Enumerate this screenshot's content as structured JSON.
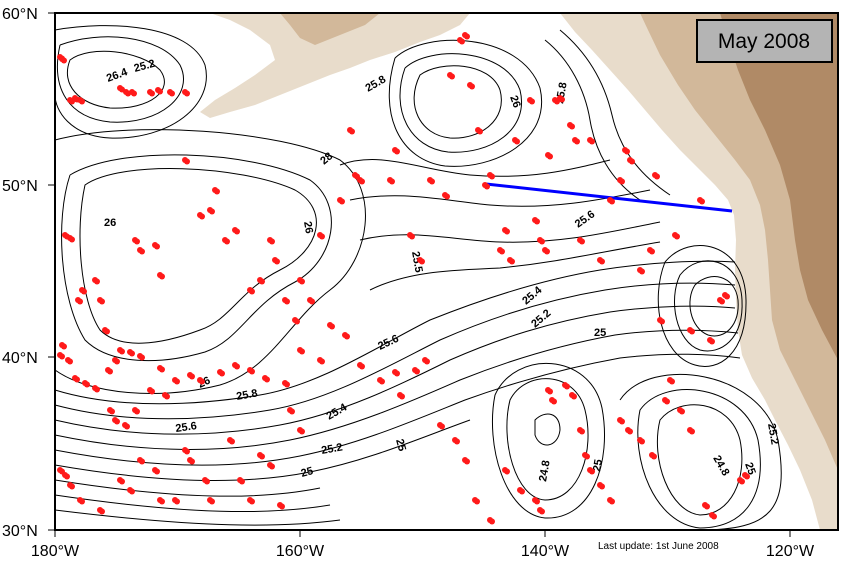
{
  "map": {
    "title": "May 2008",
    "footer": "Last update: 1st June 2008",
    "lat_labels": [
      "60°N",
      "50°N",
      "40°N",
      "30°N"
    ],
    "lon_labels": [
      "180°W",
      "160°W",
      "140°W",
      "120°W"
    ],
    "colors": {
      "land_light": "#e8dccb",
      "land_mid": "#d2b89a",
      "land_dark": "#b08a66",
      "float": "#ff1a1a",
      "section_line": "#0000ff",
      "title_box": "#b4b4b4"
    },
    "contour_labels": [
      {
        "text": "26.4"
      },
      {
        "text": "25.2"
      },
      {
        "text": "25.8"
      },
      {
        "text": "26"
      },
      {
        "text": "25.8"
      },
      {
        "text": "28"
      },
      {
        "text": "26"
      },
      {
        "text": "26"
      },
      {
        "text": "25.6"
      },
      {
        "text": "25.5"
      },
      {
        "text": "25.4"
      },
      {
        "text": "25.2"
      },
      {
        "text": "25"
      },
      {
        "text": "25.6"
      },
      {
        "text": "26"
      },
      {
        "text": "25.8"
      },
      {
        "text": "25.6"
      },
      {
        "text": "25.4"
      },
      {
        "text": "25.2"
      },
      {
        "text": "25"
      },
      {
        "text": "25"
      },
      {
        "text": "24.8"
      },
      {
        "text": "25"
      },
      {
        "text": "24.8"
      },
      {
        "text": "25"
      },
      {
        "text": "25.2"
      }
    ]
  }
}
